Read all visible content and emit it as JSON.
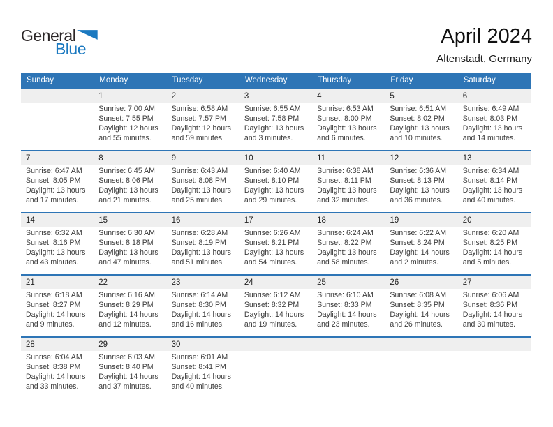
{
  "logo": {
    "part1": "General",
    "part2": "Blue",
    "accent_color": "#1b79c0",
    "text_color": "#2b2627"
  },
  "header": {
    "title": "April 2024",
    "location": "Altenstadt, Germany"
  },
  "colors": {
    "header_bg": "#2e75b6",
    "row_border": "#2e75b6",
    "day_band_bg": "#efefef"
  },
  "calendar": {
    "day_headers": [
      "Sunday",
      "Monday",
      "Tuesday",
      "Wednesday",
      "Thursday",
      "Friday",
      "Saturday"
    ],
    "labels": {
      "sunrise": "Sunrise",
      "sunset": "Sunset",
      "daylight": "Daylight"
    },
    "weeks": [
      [
        null,
        {
          "day": "1",
          "sunrise": "7:00 AM",
          "sunset": "7:55 PM",
          "daylight": "12 hours and 55 minutes."
        },
        {
          "day": "2",
          "sunrise": "6:58 AM",
          "sunset": "7:57 PM",
          "daylight": "12 hours and 59 minutes."
        },
        {
          "day": "3",
          "sunrise": "6:55 AM",
          "sunset": "7:58 PM",
          "daylight": "13 hours and 3 minutes."
        },
        {
          "day": "4",
          "sunrise": "6:53 AM",
          "sunset": "8:00 PM",
          "daylight": "13 hours and 6 minutes."
        },
        {
          "day": "5",
          "sunrise": "6:51 AM",
          "sunset": "8:02 PM",
          "daylight": "13 hours and 10 minutes."
        },
        {
          "day": "6",
          "sunrise": "6:49 AM",
          "sunset": "8:03 PM",
          "daylight": "13 hours and 14 minutes."
        }
      ],
      [
        {
          "day": "7",
          "sunrise": "6:47 AM",
          "sunset": "8:05 PM",
          "daylight": "13 hours and 17 minutes."
        },
        {
          "day": "8",
          "sunrise": "6:45 AM",
          "sunset": "8:06 PM",
          "daylight": "13 hours and 21 minutes."
        },
        {
          "day": "9",
          "sunrise": "6:43 AM",
          "sunset": "8:08 PM",
          "daylight": "13 hours and 25 minutes."
        },
        {
          "day": "10",
          "sunrise": "6:40 AM",
          "sunset": "8:10 PM",
          "daylight": "13 hours and 29 minutes."
        },
        {
          "day": "11",
          "sunrise": "6:38 AM",
          "sunset": "8:11 PM",
          "daylight": "13 hours and 32 minutes."
        },
        {
          "day": "12",
          "sunrise": "6:36 AM",
          "sunset": "8:13 PM",
          "daylight": "13 hours and 36 minutes."
        },
        {
          "day": "13",
          "sunrise": "6:34 AM",
          "sunset": "8:14 PM",
          "daylight": "13 hours and 40 minutes."
        }
      ],
      [
        {
          "day": "14",
          "sunrise": "6:32 AM",
          "sunset": "8:16 PM",
          "daylight": "13 hours and 43 minutes."
        },
        {
          "day": "15",
          "sunrise": "6:30 AM",
          "sunset": "8:18 PM",
          "daylight": "13 hours and 47 minutes."
        },
        {
          "day": "16",
          "sunrise": "6:28 AM",
          "sunset": "8:19 PM",
          "daylight": "13 hours and 51 minutes."
        },
        {
          "day": "17",
          "sunrise": "6:26 AM",
          "sunset": "8:21 PM",
          "daylight": "13 hours and 54 minutes."
        },
        {
          "day": "18",
          "sunrise": "6:24 AM",
          "sunset": "8:22 PM",
          "daylight": "13 hours and 58 minutes."
        },
        {
          "day": "19",
          "sunrise": "6:22 AM",
          "sunset": "8:24 PM",
          "daylight": "14 hours and 2 minutes."
        },
        {
          "day": "20",
          "sunrise": "6:20 AM",
          "sunset": "8:25 PM",
          "daylight": "14 hours and 5 minutes."
        }
      ],
      [
        {
          "day": "21",
          "sunrise": "6:18 AM",
          "sunset": "8:27 PM",
          "daylight": "14 hours and 9 minutes."
        },
        {
          "day": "22",
          "sunrise": "6:16 AM",
          "sunset": "8:29 PM",
          "daylight": "14 hours and 12 minutes."
        },
        {
          "day": "23",
          "sunrise": "6:14 AM",
          "sunset": "8:30 PM",
          "daylight": "14 hours and 16 minutes."
        },
        {
          "day": "24",
          "sunrise": "6:12 AM",
          "sunset": "8:32 PM",
          "daylight": "14 hours and 19 minutes."
        },
        {
          "day": "25",
          "sunrise": "6:10 AM",
          "sunset": "8:33 PM",
          "daylight": "14 hours and 23 minutes."
        },
        {
          "day": "26",
          "sunrise": "6:08 AM",
          "sunset": "8:35 PM",
          "daylight": "14 hours and 26 minutes."
        },
        {
          "day": "27",
          "sunrise": "6:06 AM",
          "sunset": "8:36 PM",
          "daylight": "14 hours and 30 minutes."
        }
      ],
      [
        {
          "day": "28",
          "sunrise": "6:04 AM",
          "sunset": "8:38 PM",
          "daylight": "14 hours and 33 minutes."
        },
        {
          "day": "29",
          "sunrise": "6:03 AM",
          "sunset": "8:40 PM",
          "daylight": "14 hours and 37 minutes."
        },
        {
          "day": "30",
          "sunrise": "6:01 AM",
          "sunset": "8:41 PM",
          "daylight": "14 hours and 40 minutes."
        },
        null,
        null,
        null,
        null
      ]
    ]
  }
}
